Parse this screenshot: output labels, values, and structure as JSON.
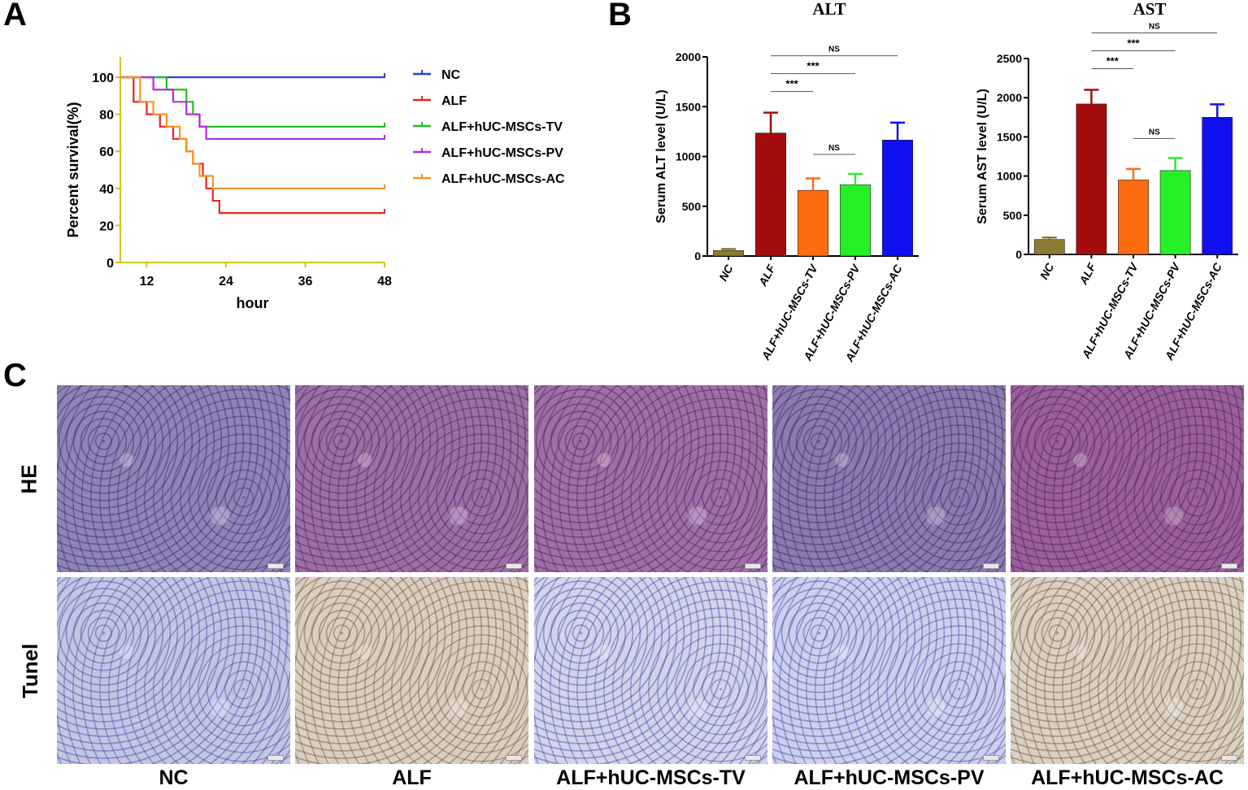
{
  "panels": {
    "a": "A",
    "b": "B",
    "c": "C"
  },
  "chart_data": [
    {
      "type": "line",
      "xlabel": "hour",
      "ylabel": "Percent survival(%)",
      "xticks": [
        "12",
        "24",
        "36",
        "48"
      ],
      "yticks": [
        "0",
        "20",
        "40",
        "60",
        "80",
        "100"
      ],
      "xlim": [
        8,
        48
      ],
      "ylim": [
        0,
        100
      ],
      "legend_position": "right",
      "series": [
        {
          "name": "NC",
          "color": "#2a3fd9",
          "steps": [
            [
              8,
              100
            ],
            [
              48,
              100
            ]
          ]
        },
        {
          "name": "ALF",
          "color": "#e8232a",
          "steps": [
            [
              8,
              100
            ],
            [
              10,
              86.7
            ],
            [
              12,
              80
            ],
            [
              14,
              73.3
            ],
            [
              16,
              66.7
            ],
            [
              18,
              60
            ],
            [
              19,
              53.3
            ],
            [
              20.5,
              46.7
            ],
            [
              21,
              40
            ],
            [
              22,
              33.3
            ],
            [
              23,
              26.7
            ],
            [
              48,
              26.7
            ]
          ]
        },
        {
          "name": "ALF+hUC-MSCs-TV",
          "color": "#1fbf1f",
          "steps": [
            [
              8,
              100
            ],
            [
              15,
              93.3
            ],
            [
              18,
              86.7
            ],
            [
              19,
              80
            ],
            [
              20,
              73.3
            ],
            [
              48,
              73.3
            ]
          ]
        },
        {
          "name": "ALF+hUC-MSCs-PV",
          "color": "#b52be0",
          "steps": [
            [
              8,
              100
            ],
            [
              13,
              93.3
            ],
            [
              16,
              86.7
            ],
            [
              18,
              80
            ],
            [
              20,
              73.3
            ],
            [
              21,
              66.7
            ],
            [
              48,
              66.7
            ]
          ]
        },
        {
          "name": "ALF+hUC-MSCs-AC",
          "color": "#f7941d",
          "steps": [
            [
              8,
              100
            ],
            [
              11,
              86.7
            ],
            [
              13,
              80
            ],
            [
              15,
              73.3
            ],
            [
              17,
              66.7
            ],
            [
              18,
              60
            ],
            [
              19,
              53.3
            ],
            [
              20,
              46.7
            ],
            [
              22,
              40
            ],
            [
              48,
              40
            ]
          ]
        }
      ]
    },
    {
      "type": "bar",
      "title": "ALT",
      "ylabel": "Serum ALT level (U/L)",
      "ylim": [
        0,
        2000
      ],
      "yticks": [
        "0",
        "500",
        "1000",
        "1500",
        "2000"
      ],
      "categories": [
        "NC",
        "ALF",
        "ALF+hUC-MSCs-TV",
        "ALF+hUC-MSCs-PV",
        "ALF+hUC-MSCs-AC"
      ],
      "values": [
        55,
        1235,
        660,
        715,
        1165
      ],
      "errors": [
        15,
        205,
        120,
        110,
        175
      ],
      "colors": [
        "#8c7b32",
        "#a30d0d",
        "#ff6b0f",
        "#26ef26",
        "#1010f0"
      ],
      "significance": [
        {
          "from": 1,
          "to": 2,
          "label": "***"
        },
        {
          "from": 1,
          "to": 3,
          "label": "***"
        },
        {
          "from": 1,
          "to": 4,
          "label": "NS"
        },
        {
          "from": 2,
          "to": 3,
          "label": "NS"
        }
      ]
    },
    {
      "type": "bar",
      "title": "AST",
      "ylabel": "Serum AST level (U/L)",
      "ylim": [
        0,
        2500
      ],
      "yticks": [
        "0",
        "500",
        "1000",
        "1500",
        "2000",
        "2500"
      ],
      "categories": [
        "NC",
        "ALF",
        "ALF+hUC-MSCs-TV",
        "ALF+hUC-MSCs-PV",
        "ALF+hUC-MSCs-AC"
      ],
      "values": [
        190,
        1920,
        950,
        1070,
        1750
      ],
      "errors": [
        25,
        180,
        140,
        160,
        165
      ],
      "colors": [
        "#8c7b32",
        "#a30d0d",
        "#ff6b0f",
        "#26ef26",
        "#1010f0"
      ],
      "significance": [
        {
          "from": 1,
          "to": 2,
          "label": "***"
        },
        {
          "from": 1,
          "to": 3,
          "label": "***"
        },
        {
          "from": 1,
          "to": 4,
          "label": "NS"
        },
        {
          "from": 2,
          "to": 3,
          "label": "NS"
        }
      ]
    }
  ],
  "histology": {
    "rows": [
      "HE",
      "Tunel"
    ],
    "columns": [
      "NC",
      "ALF",
      "ALF+hUC-MSCs-TV",
      "ALF+hUC-MSCs-PV",
      "ALF+hUC-MSCs-AC"
    ]
  }
}
